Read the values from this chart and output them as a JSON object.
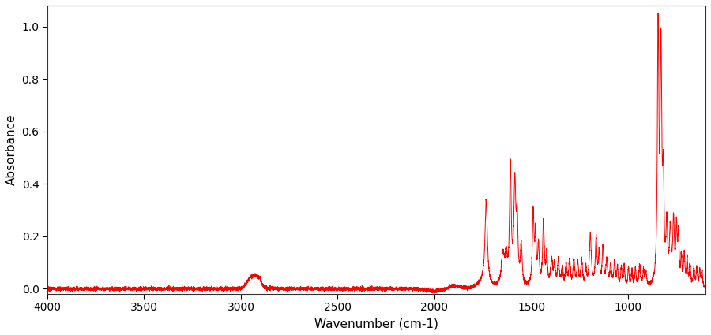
{
  "xlabel": "Wavenumber (cm-1)",
  "ylabel": "Absorbance",
  "xlim": [
    4000,
    600
  ],
  "ylim": [
    -0.02,
    1.08
  ],
  "xticks": [
    4000,
    3500,
    3000,
    2500,
    2000,
    1500,
    1000
  ],
  "yticks": [
    0.0,
    0.2,
    0.4,
    0.6,
    0.8,
    1.0
  ],
  "line_color": "#ff0000",
  "line_width": 0.7,
  "background_color": "#ffffff",
  "spine_color": "#333333",
  "tick_label_size": 10,
  "axis_label_size": 11
}
